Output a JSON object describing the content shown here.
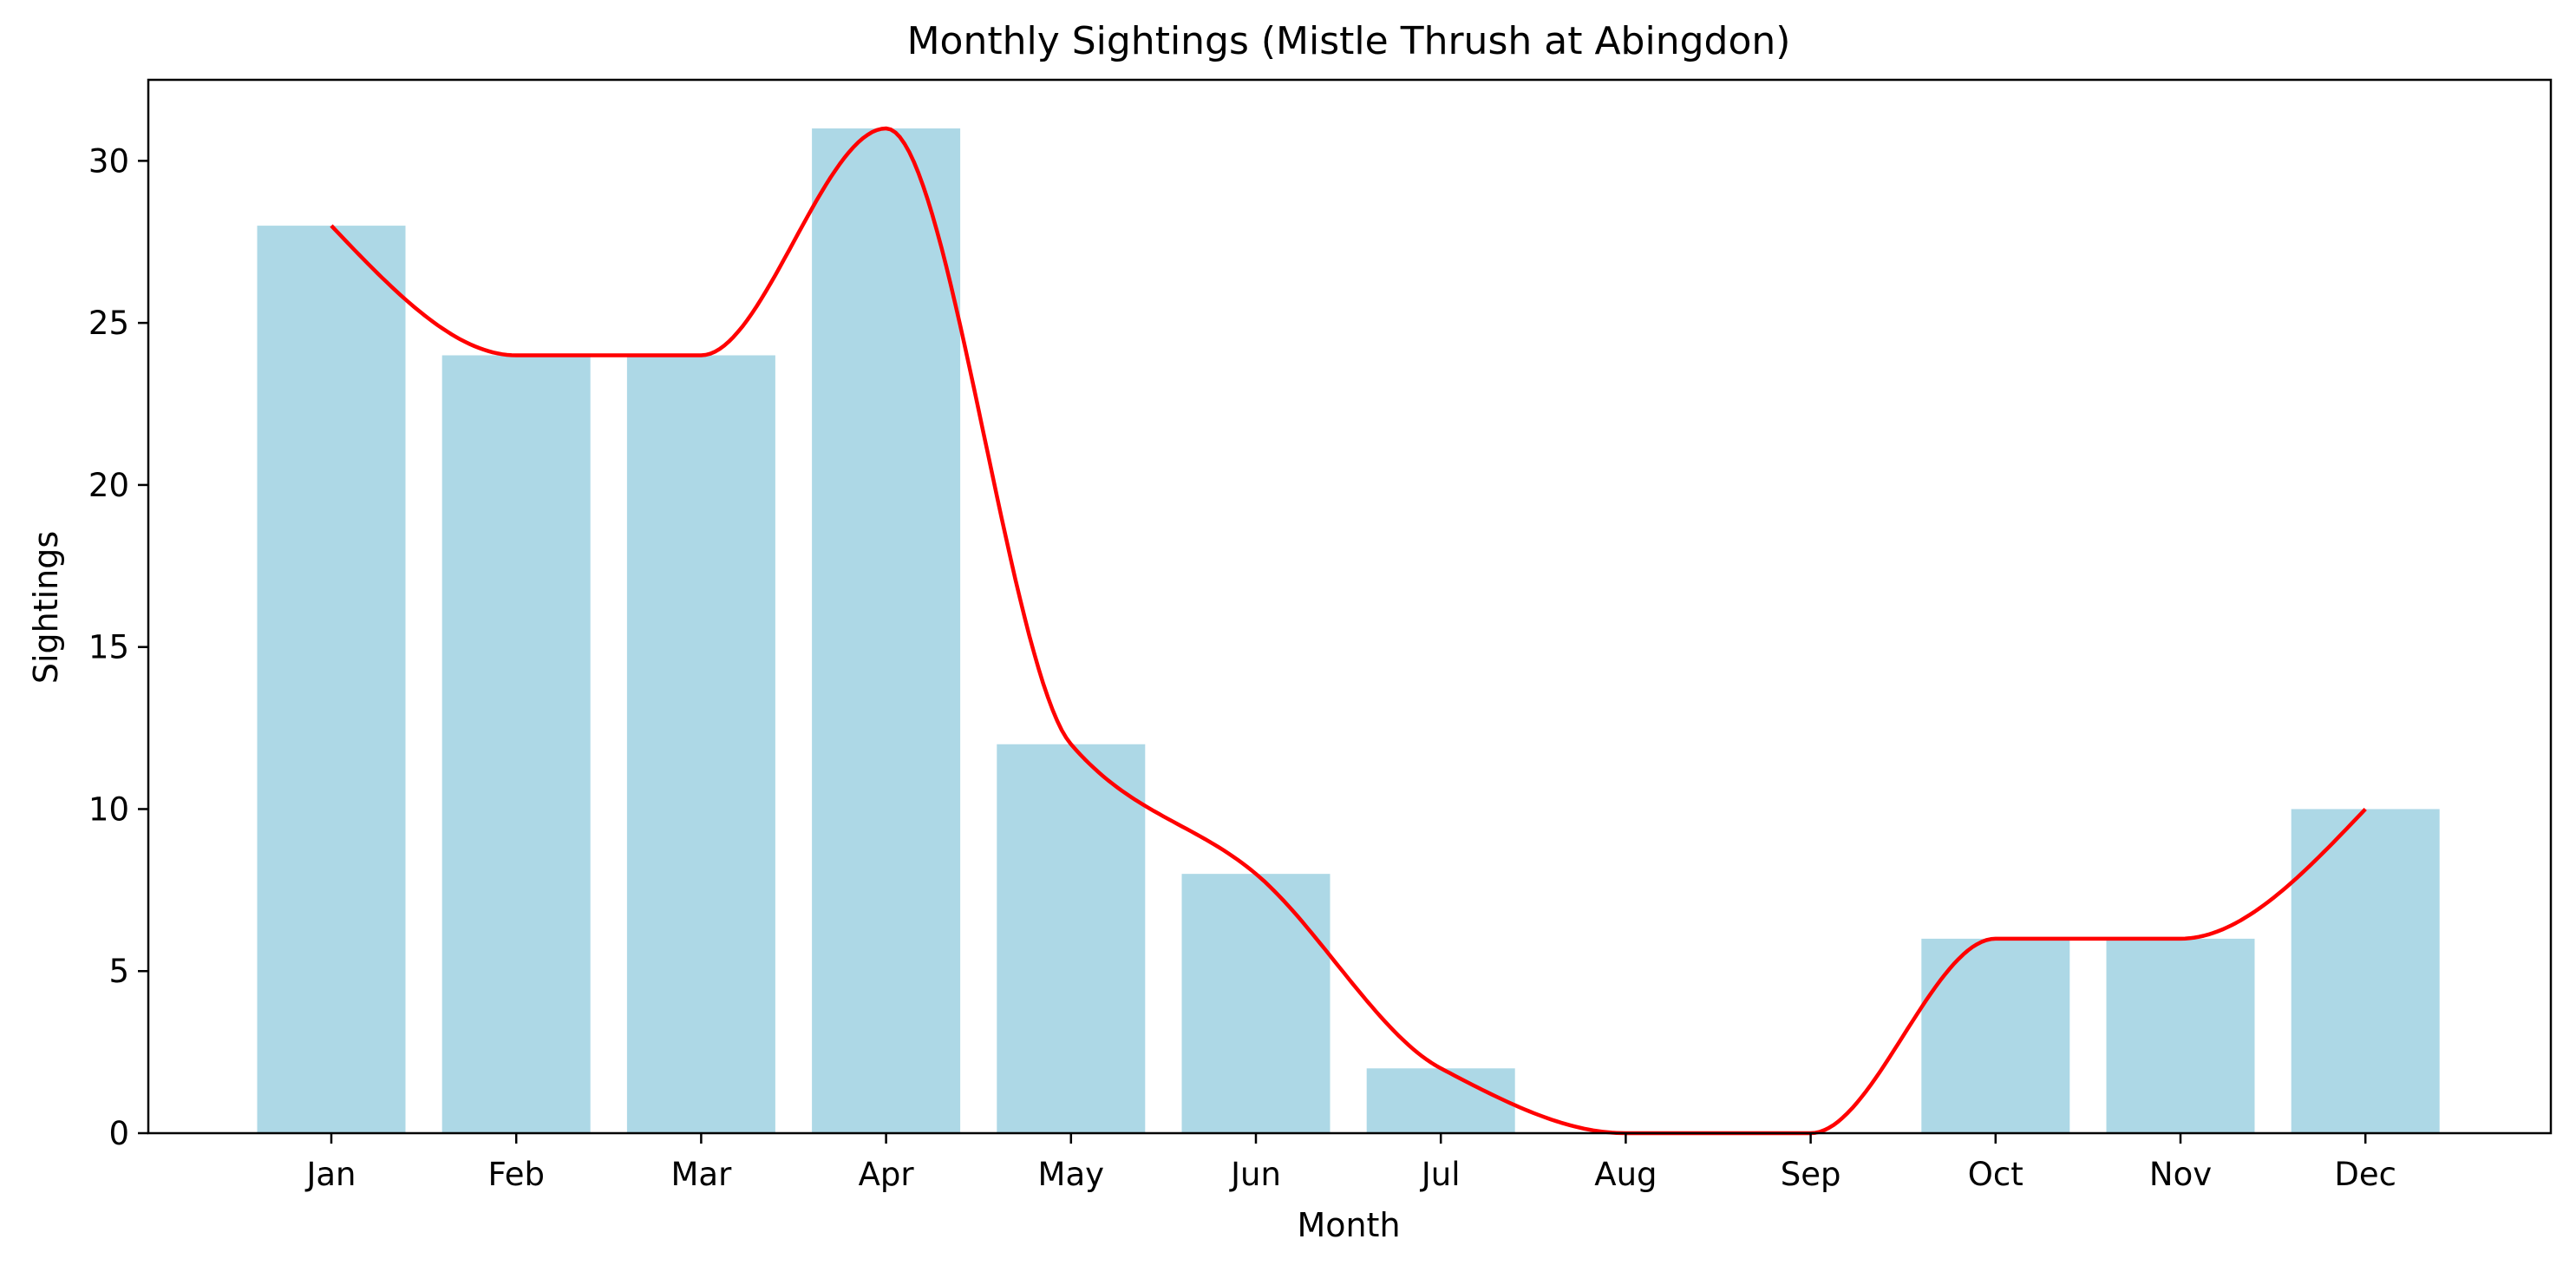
{
  "chart_data": {
    "type": "bar",
    "title": "Monthly Sightings (Mistle Thrush at Abingdon)",
    "xlabel": "Month",
    "ylabel": "Sightings",
    "categories": [
      "Jan",
      "Feb",
      "Mar",
      "Apr",
      "May",
      "Jun",
      "Jul",
      "Aug",
      "Sep",
      "Oct",
      "Nov",
      "Dec"
    ],
    "values": [
      28,
      24,
      24,
      31,
      12,
      8,
      2,
      0,
      0,
      6,
      6,
      10
    ],
    "ylim": [
      0,
      32.5
    ],
    "yticks": [
      0,
      5,
      10,
      15,
      20,
      25,
      30
    ],
    "grid": false,
    "overlay": {
      "type": "smooth-line",
      "values_from": "values"
    },
    "colors": {
      "bar": "#add8e6",
      "line": "#ff0000",
      "axes": "#000000"
    }
  }
}
